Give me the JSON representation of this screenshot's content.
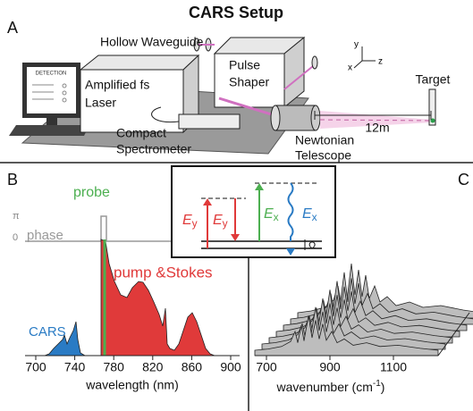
{
  "panel_a": {
    "letter": "A",
    "title": "CARS Setup",
    "labels": {
      "hollow_waveguide": "Hollow Waveguide",
      "pulse_shaper": [
        "Pulse",
        "Shaper"
      ],
      "laser": [
        "Amplified fs",
        "Laser"
      ],
      "detection": "DETECTION",
      "spectrometer": [
        "Compact",
        "Spectrometer"
      ],
      "telescope": [
        "Newtonian",
        "Telescope"
      ],
      "distance": "12m",
      "target": "Target",
      "axis_x": "x",
      "axis_y": "y",
      "axis_z": "z"
    }
  },
  "panel_b": {
    "letter": "B",
    "probe": "probe",
    "phase": "phase",
    "phase_ticks": [
      "π",
      "0"
    ],
    "pump_stokes": "pump &Stokes",
    "cars": "CARS",
    "xticks": [
      700,
      740,
      780,
      820,
      860,
      900
    ],
    "xlabel": "wavelength (nm)"
  },
  "inset": {
    "fields": [
      {
        "symbol": "E",
        "sub": "y"
      },
      {
        "symbol": "E",
        "sub": "y"
      },
      {
        "symbol": "E",
        "sub": "x"
      },
      {
        "symbol": "E",
        "sub": "x"
      }
    ],
    "omega": "Ω"
  },
  "panel_c": {
    "letter": "C",
    "xticks": [
      700,
      900,
      1100
    ],
    "xlabel": "wavenumber (cm",
    "xlabel_sup": "-1",
    "xlabel_end": ")"
  }
}
